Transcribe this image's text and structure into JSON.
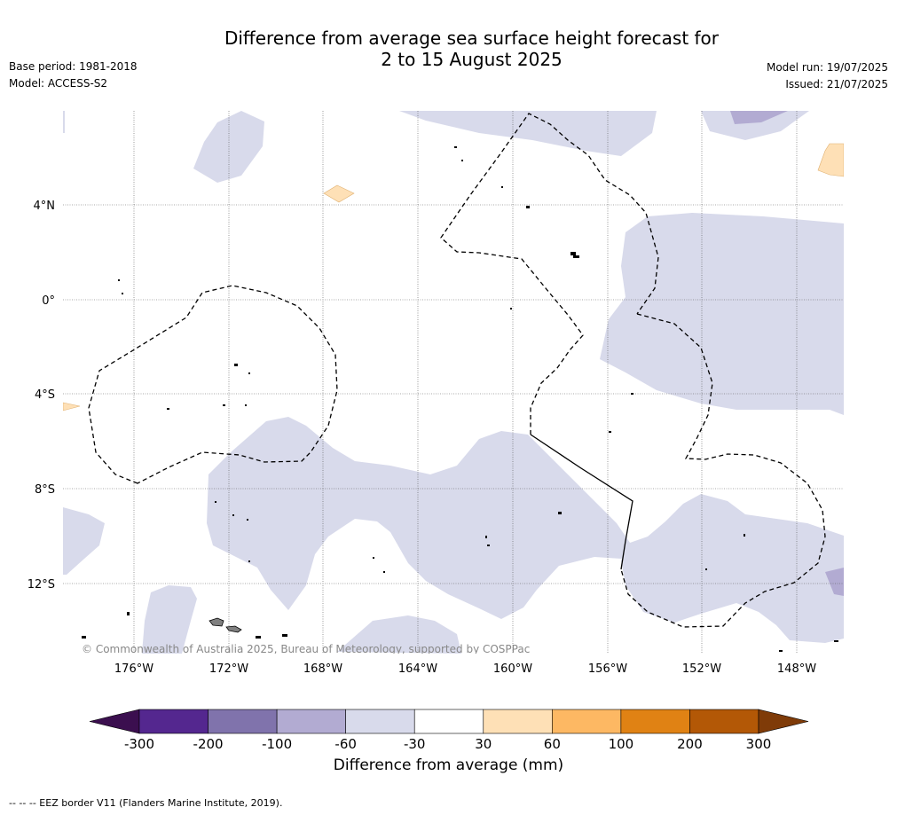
{
  "title_line1": "Difference from average sea surface height forecast for",
  "title_line2": "2 to 15 August 2025",
  "base_period": "Base period: 1981-2018",
  "model": "Model: ACCESS-S2",
  "model_run": "Model run: 19/07/2025",
  "issued": "Issued: 21/07/2025",
  "copyright": "© Commonwealth of Australia 2025, Bureau of Meteorology, supported by COSPPac",
  "lat_ticks": [
    "4°N",
    "0°",
    "4°S",
    "8°S",
    "12°S"
  ],
  "lon_ticks": [
    "176°W",
    "172°W",
    "168°W",
    "164°W",
    "160°W",
    "156°W",
    "152°W",
    "148°W"
  ],
  "colorbar": {
    "label": "Difference from average (mm)",
    "tick_labels": [
      "-300",
      "-200",
      "-100",
      "-60",
      "-30",
      "30",
      "60",
      "100",
      "200",
      "300"
    ],
    "colors": [
      "#3b0f4f",
      "#54278f",
      "#8073ac",
      "#b2abd2",
      "#d8daeb",
      "#ffffff",
      "#fee0b6",
      "#fdb863",
      "#e08214",
      "#b35806",
      "#7f3b08"
    ]
  },
  "footnote": "--  --  -- EEZ border V11 (Flanders Marine Institute, 2019)."
}
